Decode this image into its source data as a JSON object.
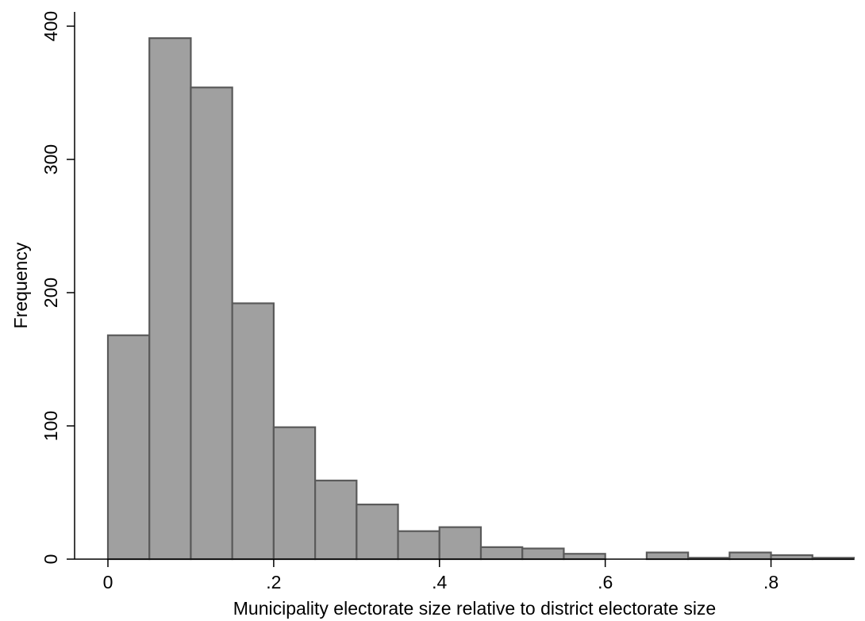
{
  "chart_data": {
    "type": "bar",
    "subtype": "histogram",
    "xlabel": "Municipality electorate size relative to district electorate size",
    "ylabel": "Frequency",
    "xlim": [
      0,
      0.9
    ],
    "ylim": [
      0,
      400
    ],
    "x_ticks": [
      {
        "value": 0,
        "label": "0"
      },
      {
        "value": 0.2,
        "label": ".2"
      },
      {
        "value": 0.4,
        "label": ".4"
      },
      {
        "value": 0.6,
        "label": ".6"
      },
      {
        "value": 0.8,
        "label": ".8"
      }
    ],
    "y_ticks": [
      {
        "value": 0,
        "label": "0"
      },
      {
        "value": 100,
        "label": "100"
      },
      {
        "value": 200,
        "label": "200"
      },
      {
        "value": 300,
        "label": "300"
      },
      {
        "value": 400,
        "label": "400"
      }
    ],
    "bin_width": 0.05,
    "bins": [
      {
        "start": 0.0,
        "end": 0.05,
        "count": 168
      },
      {
        "start": 0.05,
        "end": 0.1,
        "count": 391
      },
      {
        "start": 0.1,
        "end": 0.15,
        "count": 354
      },
      {
        "start": 0.15,
        "end": 0.2,
        "count": 192
      },
      {
        "start": 0.2,
        "end": 0.25,
        "count": 99
      },
      {
        "start": 0.25,
        "end": 0.3,
        "count": 59
      },
      {
        "start": 0.3,
        "end": 0.35,
        "count": 41
      },
      {
        "start": 0.35,
        "end": 0.4,
        "count": 21
      },
      {
        "start": 0.4,
        "end": 0.45,
        "count": 24
      },
      {
        "start": 0.45,
        "end": 0.5,
        "count": 9
      },
      {
        "start": 0.5,
        "end": 0.55,
        "count": 8
      },
      {
        "start": 0.55,
        "end": 0.6,
        "count": 4
      },
      {
        "start": 0.6,
        "end": 0.65,
        "count": 0
      },
      {
        "start": 0.65,
        "end": 0.7,
        "count": 5
      },
      {
        "start": 0.7,
        "end": 0.75,
        "count": 1
      },
      {
        "start": 0.75,
        "end": 0.8,
        "count": 5
      },
      {
        "start": 0.8,
        "end": 0.85,
        "count": 3
      },
      {
        "start": 0.85,
        "end": 0.9,
        "count": 1
      }
    ],
    "colors": {
      "bar_fill": "#a0a0a0",
      "bar_stroke": "#5a5a5a",
      "axis": "#000000"
    },
    "grid": false,
    "legend": "none"
  }
}
